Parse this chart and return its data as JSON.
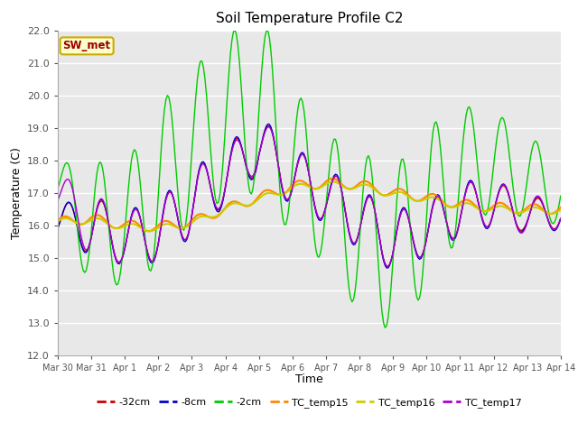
{
  "title": "Soil Temperature Profile C2",
  "xlabel": "Time",
  "ylabel": "Temperature (C)",
  "ylim": [
    12.0,
    22.0
  ],
  "yticks": [
    12.0,
    13.0,
    14.0,
    15.0,
    16.0,
    17.0,
    18.0,
    19.0,
    20.0,
    21.0,
    22.0
  ],
  "xtick_labels": [
    "Mar 30",
    "Mar 31",
    "Apr 1",
    "Apr 2",
    "Apr 3",
    "Apr 4",
    "Apr 5",
    "Apr 6",
    "Apr 7",
    "Apr 8",
    "Apr 9",
    "Apr 10",
    "Apr 11",
    "Apr 12",
    "Apr 13",
    "Apr 14"
  ],
  "annotation_text": "SW_met",
  "annotation_bg": "#ffffcc",
  "annotation_color": "#990000",
  "annotation_border": "#ccaa00",
  "fig_bg": "#ffffff",
  "plot_bg": "#e8e8e8",
  "grid_color": "#ffffff",
  "legend_labels": [
    "-32cm",
    "-8cm",
    "-2cm",
    "TC_temp15",
    "TC_temp16",
    "TC_temp17"
  ],
  "legend_colors": [
    "#cc0000",
    "#0000cc",
    "#00cc00",
    "#ff8800",
    "#cccc00",
    "#aa00cc"
  ],
  "n_points": 336,
  "period": 1.0,
  "tc15_base": [
    16.1,
    16.2,
    16.0,
    15.95,
    16.1,
    16.5,
    16.85,
    17.2,
    17.3,
    17.25,
    17.0,
    16.85,
    16.65,
    16.55,
    16.5,
    16.5
  ],
  "tc15_amp": 0.15,
  "tc15_phase": 0.3,
  "tc16_base": [
    16.1,
    16.15,
    15.95,
    15.9,
    16.05,
    16.5,
    16.8,
    17.15,
    17.25,
    17.2,
    16.95,
    16.8,
    16.6,
    16.5,
    16.45,
    16.45
  ],
  "tc16_amp": 0.1,
  "tc16_phase": 0.2,
  "tc17_base": [
    17.0,
    16.0,
    15.6,
    15.8,
    16.7,
    17.5,
    18.5,
    17.5,
    16.9,
    16.2,
    15.5,
    15.9,
    16.5,
    16.7,
    16.3,
    16.4
  ],
  "tc17_amp_base": [
    0.6,
    1.0,
    0.8,
    0.9,
    1.0,
    0.8,
    0.8,
    0.9,
    0.8,
    0.9,
    0.9,
    0.8,
    0.8,
    0.7,
    0.6,
    0.5
  ],
  "tc17_phase": -0.4,
  "d32_base": [
    16.1,
    16.0,
    15.6,
    15.8,
    16.7,
    17.5,
    18.5,
    17.5,
    16.9,
    16.2,
    15.5,
    15.9,
    16.5,
    16.7,
    16.3,
    16.4
  ],
  "d32_amp_base": [
    0.5,
    0.9,
    0.8,
    0.9,
    1.0,
    0.85,
    0.85,
    0.9,
    0.8,
    0.9,
    0.9,
    0.8,
    0.8,
    0.7,
    0.5,
    0.5
  ],
  "d32_phase": -0.4,
  "d8_base": [
    16.1,
    16.0,
    15.6,
    15.8,
    16.7,
    17.5,
    18.5,
    17.5,
    16.9,
    16.2,
    15.5,
    15.9,
    16.5,
    16.7,
    16.3,
    16.4
  ],
  "d8_amp_base": [
    0.5,
    0.95,
    0.85,
    0.95,
    1.05,
    0.9,
    0.9,
    0.95,
    0.85,
    0.95,
    0.95,
    0.85,
    0.85,
    0.75,
    0.55,
    0.55
  ],
  "d8_phase": -0.38,
  "d2_base": [
    17.2,
    16.0,
    16.0,
    17.2,
    18.5,
    19.3,
    19.8,
    18.0,
    16.8,
    15.8,
    15.2,
    16.5,
    17.7,
    18.0,
    17.5,
    17.0
  ],
  "d2_amp_base": [
    0.7,
    2.0,
    1.8,
    2.5,
    2.3,
    2.5,
    2.8,
    2.3,
    2.0,
    2.5,
    2.5,
    2.5,
    2.0,
    1.5,
    1.3,
    1.0
  ],
  "d2_phase": -0.1
}
